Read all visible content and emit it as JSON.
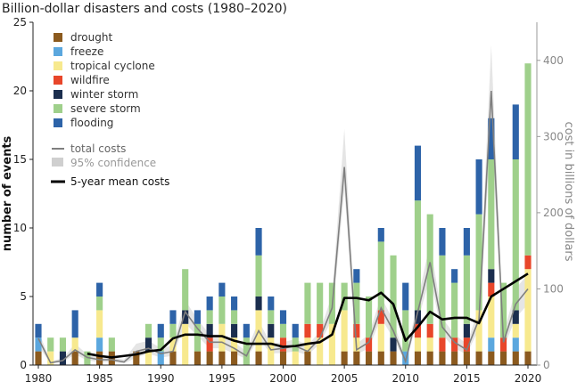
{
  "chart_data": {
    "type": "bar",
    "title": "Billion-dollar disasters and costs (1980–2020)",
    "xlabel": "",
    "ylabel": "number of events",
    "y2label": "cost in billions of dollars",
    "x": [
      1980,
      1981,
      1982,
      1983,
      1984,
      1985,
      1986,
      1987,
      1988,
      1989,
      1990,
      1991,
      1992,
      1993,
      1994,
      1995,
      1996,
      1997,
      1998,
      1999,
      2000,
      2001,
      2002,
      2003,
      2004,
      2005,
      2006,
      2007,
      2008,
      2009,
      2010,
      2011,
      2012,
      2013,
      2014,
      2015,
      2016,
      2017,
      2018,
      2019,
      2020
    ],
    "xticks": [
      1980,
      1985,
      1990,
      1995,
      2000,
      2005,
      2010,
      2015,
      2020
    ],
    "ylim": [
      0,
      25
    ],
    "yticks": [
      0,
      5,
      10,
      15,
      20,
      25
    ],
    "y2lim": [
      0,
      450
    ],
    "y2ticks": [
      0,
      100,
      200,
      300,
      400
    ],
    "grid": false,
    "legend_position": "top-left",
    "series": [
      {
        "name": "drought",
        "color": "#8B5A1E",
        "values": [
          1,
          0,
          0,
          1,
          0,
          1,
          1,
          0,
          1,
          0,
          0,
          1,
          0,
          1,
          1,
          1,
          1,
          0,
          1,
          0,
          1,
          0,
          1,
          0,
          0,
          1,
          1,
          1,
          1,
          1,
          0,
          1,
          1,
          1,
          1,
          1,
          1,
          1,
          1,
          1,
          1
        ]
      },
      {
        "name": "freeze",
        "color": "#5BA7DE",
        "values": [
          1,
          0,
          0,
          0,
          0,
          1,
          0,
          0,
          0,
          0,
          1,
          0,
          0,
          0,
          0,
          0,
          0,
          0,
          0,
          0,
          0,
          0,
          0,
          0,
          0,
          0,
          0,
          0,
          0,
          0,
          1,
          0,
          0,
          0,
          0,
          0,
          0,
          1,
          0,
          1,
          0
        ]
      },
      {
        "name": "tropical cyclone",
        "color": "#F7E98E",
        "values": [
          0,
          1,
          0,
          1,
          0,
          2,
          0,
          0,
          0,
          1,
          0,
          1,
          3,
          0,
          0,
          2,
          1,
          0,
          3,
          2,
          0,
          1,
          1,
          2,
          3,
          3,
          1,
          0,
          2,
          0,
          0,
          1,
          1,
          0,
          0,
          0,
          3,
          3,
          0,
          1,
          6
        ]
      },
      {
        "name": "wildfire",
        "color": "#E8462A",
        "values": [
          0,
          0,
          0,
          0,
          0,
          0,
          0,
          0,
          0,
          0,
          0,
          0,
          0,
          0,
          1,
          0,
          0,
          0,
          0,
          0,
          1,
          0,
          1,
          1,
          0,
          0,
          1,
          1,
          1,
          0,
          0,
          1,
          1,
          1,
          1,
          1,
          0,
          1,
          1,
          0,
          1
        ]
      },
      {
        "name": "winter storm",
        "color": "#1B2E4E",
        "values": [
          0,
          0,
          1,
          0,
          0,
          0,
          0,
          0,
          0,
          1,
          0,
          0,
          1,
          0,
          1,
          0,
          1,
          0,
          1,
          1,
          0,
          0,
          0,
          0,
          0,
          0,
          0,
          0,
          0,
          1,
          0,
          1,
          0,
          0,
          0,
          1,
          0,
          1,
          0,
          1,
          0
        ]
      },
      {
        "name": "severe storm",
        "color": "#9FD08B",
        "values": [
          0,
          1,
          1,
          0,
          1,
          1,
          1,
          0,
          0,
          1,
          1,
          1,
          3,
          2,
          1,
          2,
          1,
          2,
          3,
          1,
          1,
          1,
          3,
          3,
          3,
          2,
          3,
          3,
          5,
          6,
          3,
          8,
          8,
          6,
          4,
          5,
          7,
          8,
          4,
          11,
          14
        ]
      },
      {
        "name": "flooding",
        "color": "#2D63A8",
        "values": [
          1,
          0,
          0,
          2,
          0,
          1,
          0,
          0,
          0,
          0,
          1,
          1,
          0,
          1,
          1,
          1,
          1,
          1,
          2,
          1,
          1,
          1,
          0,
          0,
          0,
          0,
          1,
          0,
          1,
          0,
          2,
          4,
          0,
          2,
          1,
          2,
          4,
          3,
          0,
          4,
          0
        ]
      }
    ],
    "costs_name": "total costs",
    "costs": [
      35,
      3,
      6,
      20,
      10,
      7,
      7,
      4,
      18,
      22,
      15,
      18,
      70,
      48,
      30,
      30,
      22,
      12,
      45,
      20,
      22,
      25,
      18,
      35,
      75,
      260,
      20,
      30,
      75,
      45,
      5,
      70,
      135,
      50,
      30,
      20,
      60,
      360,
      30,
      80,
      100
    ],
    "confidence_name": "95% confidence",
    "confidence_low": [
      25,
      2,
      4,
      14,
      6,
      4,
      4,
      2,
      10,
      15,
      10,
      12,
      55,
      38,
      22,
      22,
      15,
      8,
      35,
      15,
      16,
      18,
      13,
      28,
      60,
      230,
      14,
      22,
      62,
      35,
      3,
      58,
      115,
      40,
      22,
      14,
      48,
      310,
      22,
      62,
      80
    ],
    "confidence_high": [
      45,
      5,
      9,
      28,
      14,
      11,
      11,
      7,
      28,
      32,
      22,
      26,
      85,
      60,
      40,
      40,
      30,
      18,
      58,
      28,
      30,
      34,
      26,
      44,
      92,
      310,
      28,
      40,
      90,
      58,
      8,
      85,
      160,
      62,
      40,
      28,
      75,
      420,
      40,
      100,
      120
    ],
    "mean_name": "5-year mean costs",
    "mean_costs": [
      null,
      null,
      null,
      null,
      15,
      12,
      10,
      12,
      14,
      18,
      20,
      35,
      40,
      40,
      38,
      38,
      32,
      28,
      28,
      28,
      24,
      25,
      28,
      30,
      40,
      88,
      88,
      85,
      95,
      80,
      32,
      50,
      70,
      60,
      62,
      62,
      55,
      90,
      100,
      110,
      120
    ]
  }
}
